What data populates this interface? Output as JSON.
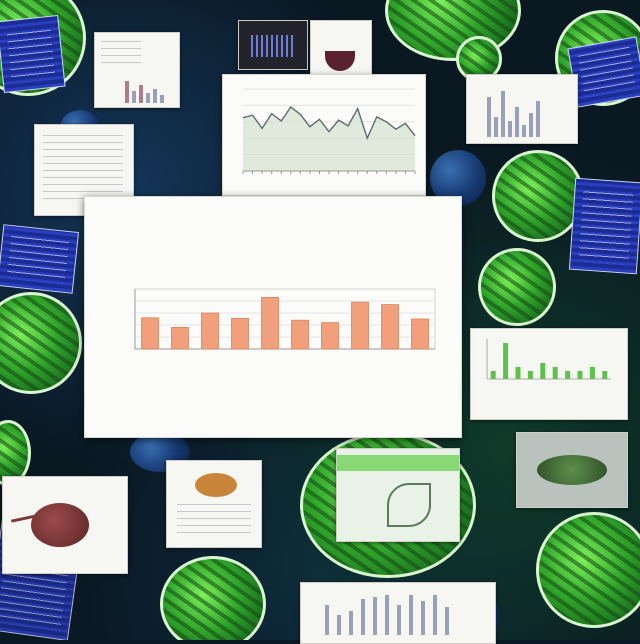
{
  "main_chart": {
    "title": "",
    "bar_color": "#f2a07c",
    "bar_edge": "#d98460",
    "ylim": [
      0,
      10
    ],
    "values": [
      5.2,
      3.6,
      6.0,
      5.1,
      8.6,
      4.8,
      4.4,
      7.8,
      7.4,
      5.0
    ]
  },
  "line_chart": {
    "line_color": "#5f6b70",
    "fill_color": "#c9dcc4",
    "ylim": [
      0,
      10
    ],
    "values": [
      6.5,
      6.8,
      5.2,
      7.0,
      6.1,
      7.8,
      6.9,
      5.4,
      6.3,
      4.8,
      6.2,
      5.5,
      7.6,
      4.0,
      6.6,
      6.0,
      5.1,
      5.8,
      4.3
    ]
  },
  "lower_right_chart": {
    "bar_color": "#5cc24a",
    "values": [
      2,
      9,
      3,
      2,
      4,
      3,
      2,
      2,
      3,
      2
    ]
  },
  "colors": {
    "card_paper": "#f6f6f3",
    "leaf_green": "#4fd23a",
    "card_blue": "#2a3fbf"
  }
}
